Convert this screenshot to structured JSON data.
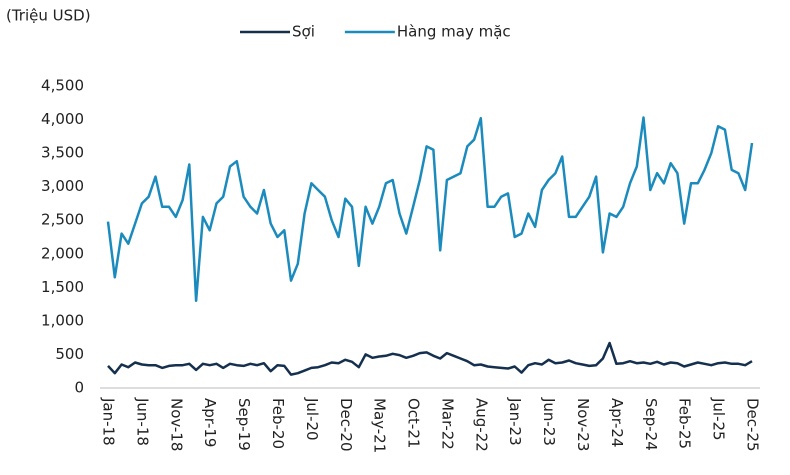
{
  "chart_data": {
    "type": "line",
    "unit_label": "(Triệu USD)",
    "categories": [
      "Jan-18",
      null,
      null,
      null,
      null,
      "Jun-18",
      null,
      null,
      null,
      null,
      "Nov-18",
      null,
      null,
      null,
      null,
      "Apr-19",
      null,
      null,
      null,
      null,
      "Sep-19",
      null,
      null,
      null,
      null,
      "Feb-20",
      null,
      null,
      null,
      null,
      "Jul-20",
      null,
      null,
      null,
      null,
      "Dec-20",
      null,
      null,
      null,
      null,
      "May-21",
      null,
      null,
      null,
      null,
      "Oct-21",
      null,
      null,
      null,
      null,
      "Mar-22",
      null,
      null,
      null,
      null,
      "Aug-22",
      null,
      null,
      null,
      null,
      "Jan-23",
      null,
      null,
      null,
      null,
      "Jun-23",
      null,
      null,
      null,
      null,
      "Nov-23",
      null,
      null,
      null,
      null,
      "Apr-24",
      null,
      null,
      null,
      null,
      "Sep-24",
      null,
      null,
      null,
      null,
      "Feb-25",
      null,
      null,
      null,
      null,
      "Jul-25",
      null,
      null,
      null,
      null,
      "Dec-25"
    ],
    "series": [
      {
        "name": "Sợi",
        "color": "#15304f",
        "values": [
          330,
          220,
          350,
          310,
          380,
          350,
          340,
          340,
          300,
          330,
          340,
          340,
          360,
          270,
          360,
          340,
          360,
          300,
          360,
          340,
          330,
          360,
          340,
          370,
          250,
          340,
          330,
          200,
          220,
          260,
          300,
          310,
          340,
          380,
          370,
          420,
          390,
          310,
          500,
          450,
          470,
          480,
          510,
          490,
          450,
          480,
          520,
          530,
          480,
          440,
          520,
          480,
          440,
          400,
          340,
          350,
          320,
          310,
          300,
          290,
          320,
          230,
          340,
          370,
          350,
          420,
          370,
          380,
          410,
          370,
          350,
          330,
          340,
          440,
          670,
          360,
          370,
          400,
          370,
          380,
          360,
          390,
          350,
          380,
          370,
          320,
          350,
          380,
          360,
          340,
          370,
          380,
          360,
          360,
          340,
          400
        ]
      },
      {
        "name": "Hàng may mặc",
        "color": "#1b8bbd",
        "values": [
          2480,
          1650,
          2300,
          2150,
          2450,
          2750,
          2850,
          3150,
          2700,
          2700,
          2550,
          2800,
          3330,
          1300,
          2550,
          2350,
          2750,
          2850,
          3300,
          3380,
          2850,
          2700,
          2600,
          2950,
          2450,
          2250,
          2350,
          1600,
          1850,
          2600,
          3050,
          2950,
          2850,
          2500,
          2250,
          2820,
          2700,
          1820,
          2700,
          2450,
          2700,
          3050,
          3100,
          2600,
          2300,
          2700,
          3100,
          3600,
          3550,
          2050,
          3100,
          3150,
          3200,
          3600,
          3700,
          4020,
          2700,
          2700,
          2850,
          2900,
          2250,
          2300,
          2600,
          2400,
          2950,
          3100,
          3200,
          3450,
          2550,
          2550,
          2700,
          2850,
          3150,
          2020,
          2600,
          2550,
          2700,
          3050,
          3300,
          4030,
          2950,
          3200,
          3050,
          3350,
          3200,
          2450,
          3050,
          3050,
          3250,
          3500,
          3900,
          3850,
          3250,
          3200,
          2950,
          3650
        ]
      }
    ],
    "ylim": [
      0,
      4500
    ],
    "yticks": [
      0,
      500,
      {
        "value": 1000,
        "label": "1,000"
      },
      {
        "value": 1500,
        "label": "1,500"
      },
      {
        "value": 2000,
        "label": "2,000"
      },
      {
        "value": 2500,
        "label": "2,500"
      },
      {
        "value": 3000,
        "label": "3,000"
      },
      {
        "value": 3500,
        "label": "3,500"
      },
      {
        "value": 4000,
        "label": "4,000"
      },
      {
        "value": 4500,
        "label": "4,500"
      }
    ],
    "grid": false
  }
}
